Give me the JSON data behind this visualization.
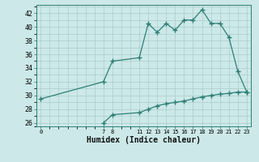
{
  "title": "",
  "xlabel": "Humidex (Indice chaleur)",
  "ylabel": "",
  "background_color": "#cce8e8",
  "grid_color": "#aacccc",
  "line_color": "#2d7f75",
  "xlim": [
    -0.5,
    23.5
  ],
  "ylim": [
    25.5,
    43.2
  ],
  "yticks": [
    26,
    28,
    30,
    32,
    34,
    36,
    38,
    40,
    42
  ],
  "xticks": [
    0,
    7,
    8,
    11,
    12,
    13,
    14,
    15,
    16,
    17,
    18,
    19,
    20,
    21,
    22,
    23
  ],
  "main_x": [
    0,
    7,
    8,
    11,
    12,
    13,
    14,
    15,
    16,
    17,
    18,
    19,
    20,
    21,
    22,
    23
  ],
  "main_y": [
    29.5,
    32.0,
    35.0,
    35.5,
    40.5,
    39.2,
    40.5,
    39.5,
    41.0,
    41.0,
    42.5,
    40.5,
    40.5,
    38.5,
    33.5,
    30.5
  ],
  "min_x": [
    7,
    8,
    11,
    12,
    13,
    14,
    15,
    16,
    17,
    18,
    19,
    20,
    21,
    22,
    23
  ],
  "min_y": [
    26.0,
    27.2,
    27.5,
    28.0,
    28.5,
    28.8,
    29.0,
    29.2,
    29.5,
    29.8,
    30.0,
    30.2,
    30.3,
    30.5,
    30.5
  ]
}
